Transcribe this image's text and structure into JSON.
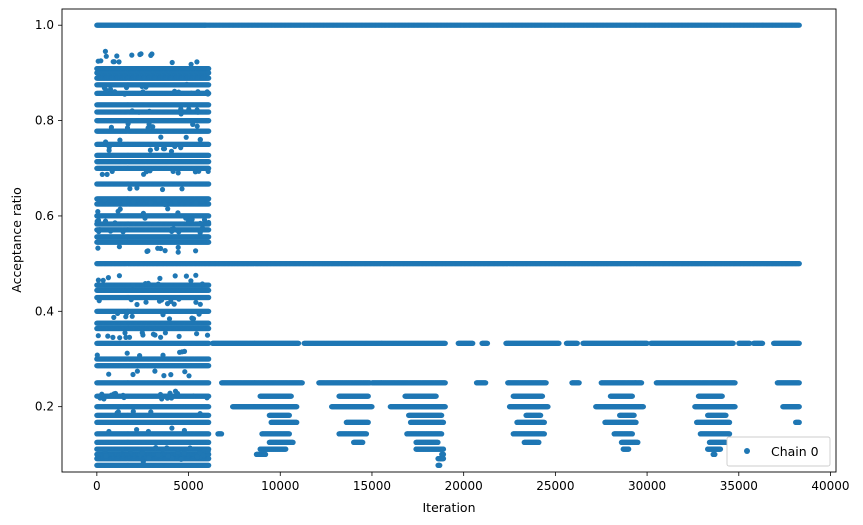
{
  "chart_data": {
    "type": "scatter",
    "title": "",
    "xlabel": "Iteration",
    "ylabel": "Acceptance ratio",
    "xlim": [
      -1900,
      40300
    ],
    "ylim": [
      0.063,
      1.034
    ],
    "xticks": [
      0,
      5000,
      10000,
      15000,
      20000,
      25000,
      30000,
      35000,
      40000
    ],
    "yticks": [
      0.2,
      0.4,
      0.6,
      0.8,
      1.0
    ],
    "xtick_labels": [
      "0",
      "5000",
      "10000",
      "15000",
      "20000",
      "25000",
      "30000",
      "35000",
      "40000"
    ],
    "ytick_labels": [
      "0.2",
      "0.4",
      "0.6",
      "0.8",
      "1.0"
    ],
    "grid": false,
    "legend_position": "lower-right",
    "color": "#1f77b4",
    "series": [
      {
        "name": "Chain 0",
        "iterations_range": [
          0,
          38300
        ],
        "bands": [
          {
            "y": 1.0,
            "x_ranges": [
              [
                0,
                5900
              ],
              [
                5900,
                38300
              ]
            ]
          },
          {
            "y": 0.909,
            "x_ranges": [
              [
                0,
                6100
              ]
            ]
          },
          {
            "y": 0.9,
            "x_ranges": [
              [
                0,
                6100
              ]
            ]
          },
          {
            "y": 0.889,
            "x_ranges": [
              [
                0,
                6100
              ]
            ]
          },
          {
            "y": 0.875,
            "x_ranges": [
              [
                0,
                6100
              ]
            ]
          },
          {
            "y": 0.857,
            "x_ranges": [
              [
                0,
                6100
              ]
            ]
          },
          {
            "y": 0.833,
            "x_ranges": [
              [
                0,
                6100
              ]
            ]
          },
          {
            "y": 0.818,
            "x_ranges": [
              [
                0,
                6100
              ]
            ]
          },
          {
            "y": 0.8,
            "x_ranges": [
              [
                0,
                6100
              ]
            ]
          },
          {
            "y": 0.778,
            "x_ranges": [
              [
                0,
                6100
              ]
            ]
          },
          {
            "y": 0.75,
            "x_ranges": [
              [
                0,
                6100
              ]
            ]
          },
          {
            "y": 0.727,
            "x_ranges": [
              [
                0,
                6100
              ]
            ]
          },
          {
            "y": 0.714,
            "x_ranges": [
              [
                0,
                6100
              ]
            ]
          },
          {
            "y": 0.7,
            "x_ranges": [
              [
                0,
                6100
              ]
            ]
          },
          {
            "y": 0.667,
            "x_ranges": [
              [
                0,
                6100
              ]
            ]
          },
          {
            "y": 0.636,
            "x_ranges": [
              [
                0,
                6100
              ]
            ]
          },
          {
            "y": 0.625,
            "x_ranges": [
              [
                0,
                6100
              ]
            ]
          },
          {
            "y": 0.6,
            "x_ranges": [
              [
                0,
                6100
              ]
            ]
          },
          {
            "y": 0.583,
            "x_ranges": [
              [
                0,
                6100
              ]
            ]
          },
          {
            "y": 0.571,
            "x_ranges": [
              [
                0,
                6100
              ]
            ]
          },
          {
            "y": 0.556,
            "x_ranges": [
              [
                0,
                6100
              ]
            ]
          },
          {
            "y": 0.545,
            "x_ranges": [
              [
                0,
                6100
              ]
            ]
          },
          {
            "y": 0.5,
            "x_ranges": [
              [
                0,
                38300
              ]
            ]
          },
          {
            "y": 0.455,
            "x_ranges": [
              [
                0,
                6100
              ]
            ]
          },
          {
            "y": 0.444,
            "x_ranges": [
              [
                0,
                6100
              ]
            ]
          },
          {
            "y": 0.429,
            "x_ranges": [
              [
                0,
                6100
              ]
            ]
          },
          {
            "y": 0.4,
            "x_ranges": [
              [
                0,
                6100
              ]
            ]
          },
          {
            "y": 0.375,
            "x_ranges": [
              [
                0,
                6100
              ]
            ]
          },
          {
            "y": 0.364,
            "x_ranges": [
              [
                0,
                6100
              ]
            ]
          },
          {
            "y": 0.333,
            "x_ranges": [
              [
                0,
                6100
              ],
              [
                6300,
                11000
              ],
              [
                11300,
                19000
              ],
              [
                19700,
                20500
              ],
              [
                21000,
                21300
              ],
              [
                22300,
                25200
              ],
              [
                25600,
                26200
              ],
              [
                26500,
                30000
              ],
              [
                30200,
                34700
              ],
              [
                35000,
                35600
              ],
              [
                35800,
                36300
              ],
              [
                36900,
                38300
              ]
            ]
          },
          {
            "y": 0.3,
            "x_ranges": [
              [
                0,
                6100
              ]
            ]
          },
          {
            "y": 0.286,
            "x_ranges": [
              [
                0,
                6100
              ]
            ]
          },
          {
            "y": 0.25,
            "x_ranges": [
              [
                0,
                6100
              ],
              [
                6800,
                11200
              ],
              [
                12100,
                14900
              ],
              [
                15000,
                19000
              ],
              [
                20700,
                21200
              ],
              [
                22400,
                24500
              ],
              [
                25900,
                26300
              ],
              [
                27500,
                29700
              ],
              [
                30500,
                34800
              ],
              [
                37100,
                38300
              ]
            ]
          },
          {
            "y": 0.222,
            "x_ranges": [
              [
                0,
                6100
              ],
              [
                8900,
                10600
              ],
              [
                13200,
                14800
              ],
              [
                16800,
                18500
              ],
              [
                22700,
                24300
              ],
              [
                28000,
                29200
              ],
              [
                32800,
                34100
              ]
            ]
          },
          {
            "y": 0.2,
            "x_ranges": [
              [
                0,
                6100
              ],
              [
                7400,
                10900
              ],
              [
                12800,
                15000
              ],
              [
                16000,
                19000
              ],
              [
                22500,
                24600
              ],
              [
                27200,
                29800
              ],
              [
                32600,
                34800
              ],
              [
                37400,
                38300
              ]
            ]
          },
          {
            "y": 0.182,
            "x_ranges": [
              [
                0,
                6100
              ],
              [
                9400,
                10500
              ],
              [
                17000,
                18800
              ],
              [
                23400,
                24200
              ],
              [
                28500,
                29300
              ],
              [
                33300,
                34300
              ]
            ]
          },
          {
            "y": 0.167,
            "x_ranges": [
              [
                0,
                6100
              ],
              [
                9500,
                10900
              ],
              [
                13600,
                14800
              ],
              [
                17100,
                18900
              ],
              [
                22900,
                24400
              ],
              [
                27700,
                29400
              ],
              [
                32700,
                34500
              ],
              [
                38100,
                38300
              ]
            ]
          },
          {
            "y": 0.143,
            "x_ranges": [
              [
                0,
                6100
              ],
              [
                6600,
                6800
              ],
              [
                9000,
                10500
              ],
              [
                13200,
                14700
              ],
              [
                16900,
                18800
              ],
              [
                22700,
                24400
              ],
              [
                28200,
                29200
              ],
              [
                32900,
                34500
              ]
            ]
          },
          {
            "y": 0.125,
            "x_ranges": [
              [
                0,
                6100
              ],
              [
                9400,
                10700
              ],
              [
                14000,
                14500
              ],
              [
                17400,
                18600
              ],
              [
                23300,
                24100
              ],
              [
                28600,
                29500
              ],
              [
                33400,
                34300
              ]
            ]
          },
          {
            "y": 0.111,
            "x_ranges": [
              [
                0,
                6100
              ],
              [
                8900,
                10300
              ],
              [
                17400,
                18900
              ],
              [
                28700,
                29000
              ],
              [
                33300,
                34000
              ]
            ]
          },
          {
            "y": 0.1,
            "x_ranges": [
              [
                0,
                6100
              ],
              [
                8700,
                9200
              ],
              [
                18800,
                18900
              ],
              [
                33600,
                33700
              ]
            ]
          },
          {
            "y": 0.091,
            "x_ranges": [
              [
                0,
                6100
              ],
              [
                18600,
                18900
              ]
            ]
          },
          {
            "y": 0.077,
            "x_ranges": [
              [
                0,
                6100
              ],
              [
                18600,
                18700
              ]
            ]
          }
        ]
      }
    ]
  }
}
